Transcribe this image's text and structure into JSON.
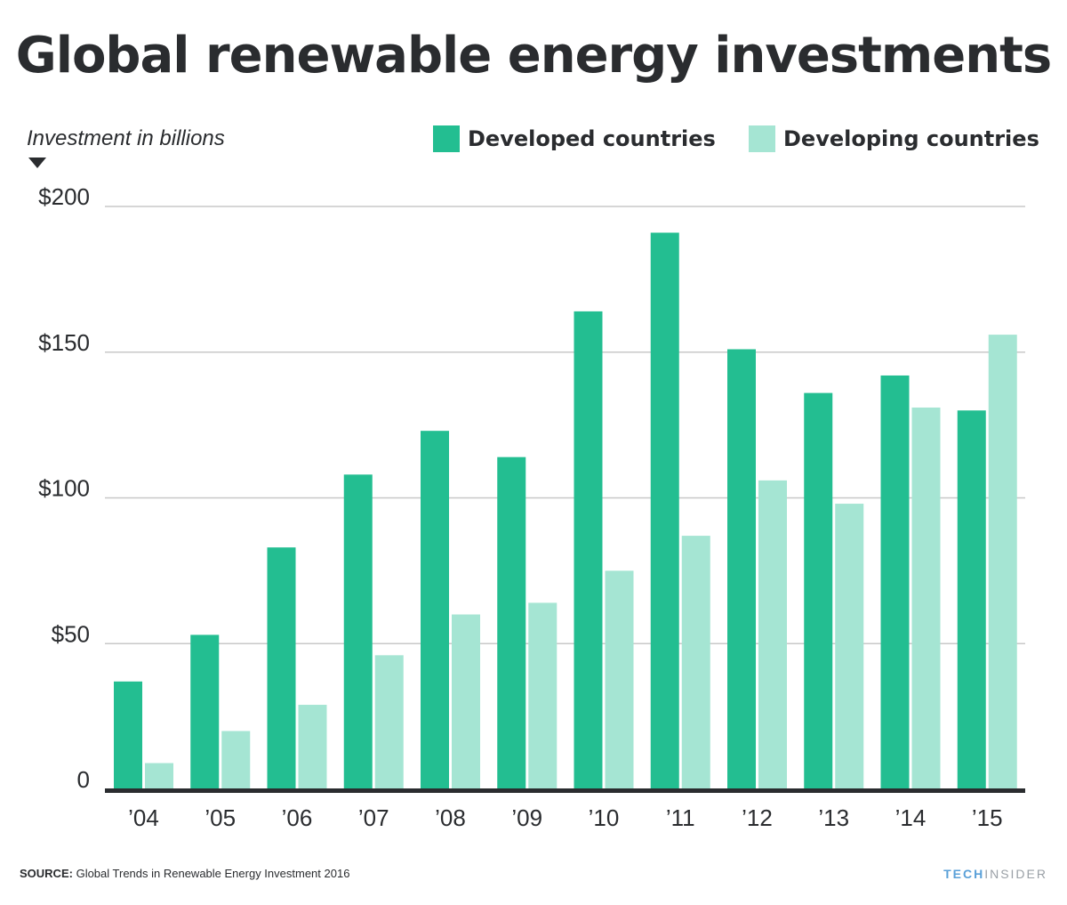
{
  "title": "Global renewable energy investments",
  "colors": {
    "developed": "#23be91",
    "developing": "#a5e5d3",
    "text": "#2a2c2f",
    "grid": "#c8c8c8",
    "axis": "#2a2c2f"
  },
  "footer": {
    "source_label": "SOURCE:",
    "source_text": "Global Trends in Renewable Energy Investment 2016",
    "brand_part1": "TECH",
    "brand_part2": "INSIDER"
  },
  "chart_data": {
    "type": "bar",
    "ylabel": "Investment in billions",
    "categories": [
      "’04",
      "’05",
      "’06",
      "’07",
      "’08",
      "’09",
      "’10",
      "’11",
      "’12",
      "’13",
      "’14",
      "’15"
    ],
    "series": [
      {
        "name": "Developed countries",
        "values": [
          37,
          53,
          83,
          108,
          123,
          114,
          164,
          191,
          151,
          136,
          142,
          130
        ]
      },
      {
        "name": "Developing countries",
        "values": [
          9,
          20,
          29,
          46,
          60,
          64,
          75,
          87,
          106,
          98,
          131,
          156
        ]
      }
    ],
    "ylim": [
      0,
      200
    ],
    "yticks": [
      {
        "value": 0,
        "label": "0"
      },
      {
        "value": 50,
        "label": "$50"
      },
      {
        "value": 100,
        "label": "$100"
      },
      {
        "value": 150,
        "label": "$150"
      },
      {
        "value": 200,
        "label": "$200"
      }
    ],
    "grid": true,
    "legend_position": "top-right"
  }
}
